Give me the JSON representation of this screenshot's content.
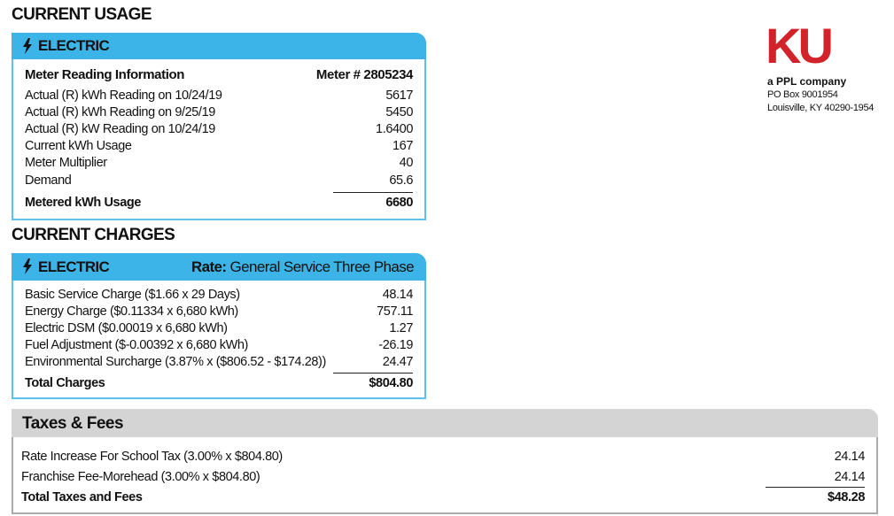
{
  "usage": {
    "title": "CURRENT USAGE",
    "section": "ELECTRIC",
    "header_label": "Meter Reading Information",
    "meter": "Meter # 2805234",
    "rows": [
      [
        "Actual (R) kWh Reading on 10/24/19",
        "5617"
      ],
      [
        "Actual (R) kWh Reading on 9/25/19",
        "5450"
      ],
      [
        "Actual (R) kW Reading on 10/24/19",
        "1.6400"
      ],
      [
        "Current kWh Usage",
        "167"
      ],
      [
        "Meter Multiplier",
        "40"
      ],
      [
        "Demand",
        "65.6"
      ]
    ],
    "total": [
      "Metered kWh Usage",
      "6680"
    ]
  },
  "charges": {
    "title": "CURRENT CHARGES",
    "section": "ELECTRIC",
    "rate_label": "Rate:",
    "rate": "General Service Three Phase",
    "rows": [
      [
        "Basic Service Charge ($1.66 x 29 Days)",
        "48.14"
      ],
      [
        "Energy Charge ($0.11334 x 6,680 kWh)",
        "757.11"
      ],
      [
        "Electric DSM ($0.00019 x 6,680 kWh)",
        "1.27"
      ],
      [
        "Fuel Adjustment ($-0.00392 x 6,680 kWh)",
        "-26.19"
      ],
      [
        "Environmental Surcharge (3.87% x ($806.52 - $174.28))",
        "24.47"
      ]
    ],
    "total": [
      "Total Charges",
      "$804.80"
    ]
  },
  "taxes": {
    "title": "Taxes & Fees",
    "rows": [
      [
        "Rate Increase For School Tax (3.00% x $804.80)",
        "24.14"
      ],
      [
        "Franchise Fee-Morehead (3.00% x $804.80)",
        "24.14"
      ]
    ],
    "total": [
      "Total Taxes and Fees",
      "$48.28"
    ]
  },
  "company": {
    "logo": "KU",
    "tagline": "a PPL company",
    "address": [
      "PO Box 9001954",
      "Louisville, KY 40290-1954"
    ]
  }
}
